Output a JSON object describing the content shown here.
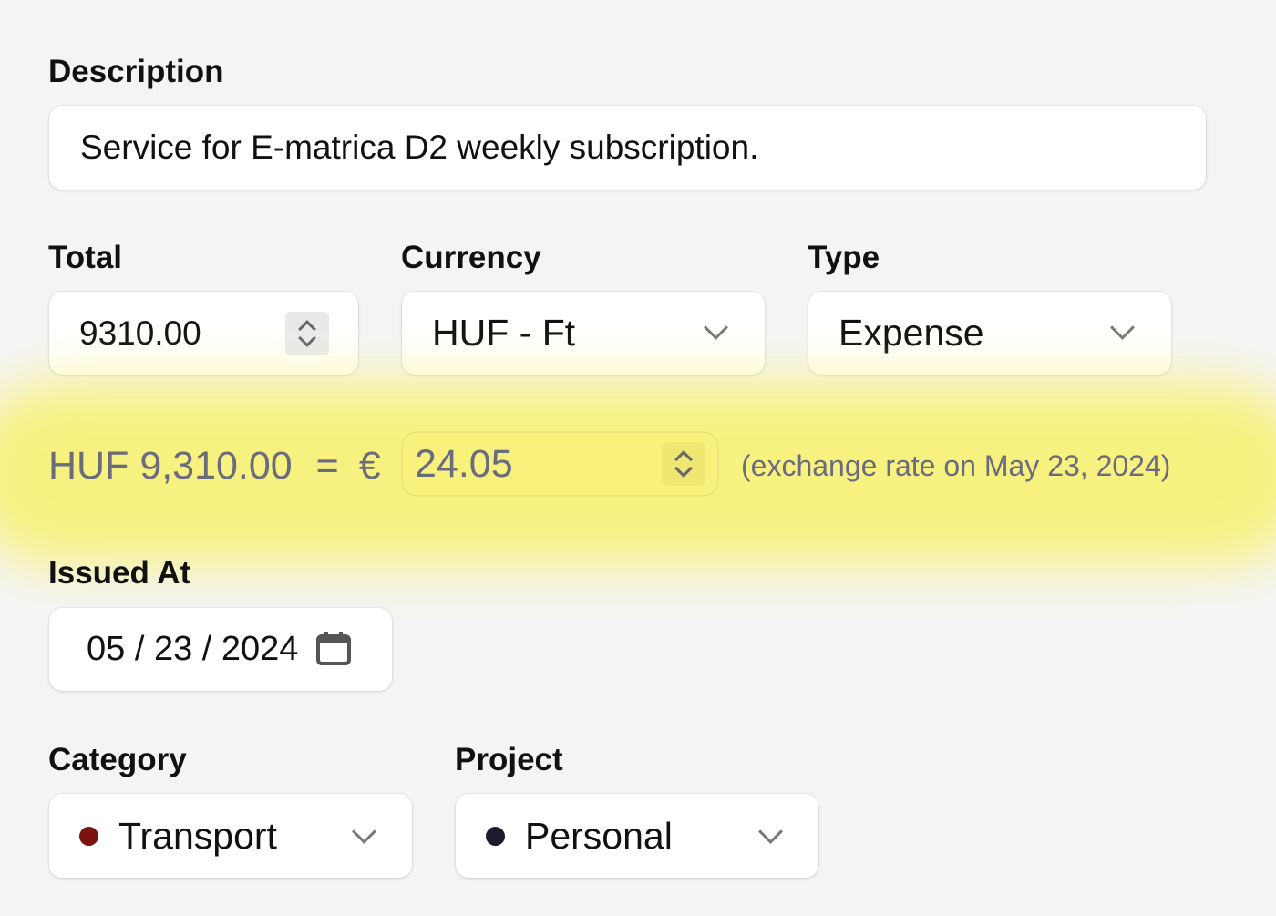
{
  "description": {
    "label": "Description",
    "value": "Service for E-matrica D2 weekly subscription."
  },
  "total": {
    "label": "Total",
    "value": "9310.00"
  },
  "currency": {
    "label": "Currency",
    "value": "HUF - Ft"
  },
  "type": {
    "label": "Type",
    "value": "Expense"
  },
  "conversion": {
    "source_amount": "HUF 9,310.00",
    "equals": "=",
    "target_symbol": "€",
    "target_value": "24.05",
    "note": "(exchange rate on May 23, 2024)",
    "highlight_color": "#f8f27a",
    "text_color": "#6b6b7e"
  },
  "issued_at": {
    "label": "Issued At",
    "value": "05 / 23 / 2024"
  },
  "category": {
    "label": "Category",
    "value": "Transport",
    "dot_color": "#7a1410"
  },
  "project": {
    "label": "Project",
    "value": "Personal",
    "dot_color": "#1c1c2a"
  }
}
